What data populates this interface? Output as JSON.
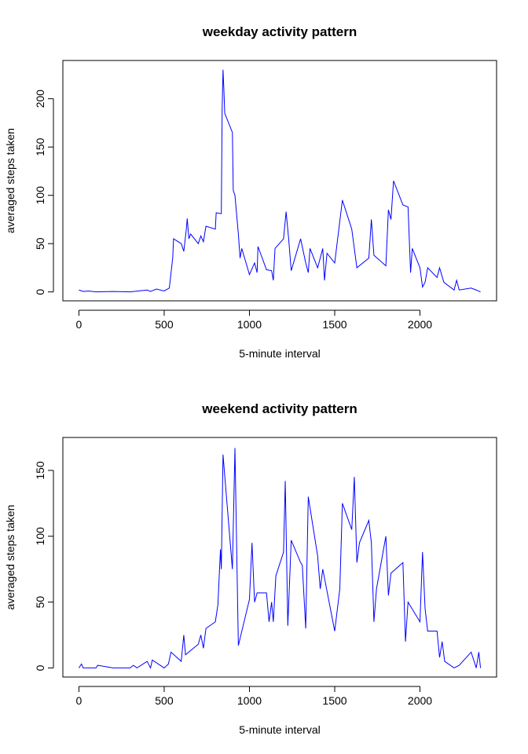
{
  "chart_data": [
    {
      "type": "line",
      "title": "weekday activity pattern",
      "xlabel": "5-minute interval",
      "ylabel": "averaged steps taken",
      "x": [
        0,
        25,
        55,
        100,
        200,
        300,
        400,
        420,
        455,
        500,
        530,
        550,
        555,
        600,
        615,
        630,
        635,
        645,
        655,
        700,
        715,
        730,
        745,
        800,
        805,
        835,
        840,
        845,
        850,
        855,
        900,
        905,
        915,
        925,
        935,
        945,
        955,
        1000,
        1030,
        1045,
        1050,
        1100,
        1130,
        1140,
        1150,
        1200,
        1215,
        1230,
        1245,
        1300,
        1330,
        1345,
        1355,
        1400,
        1430,
        1440,
        1455,
        1500,
        1545,
        1600,
        1630,
        1700,
        1715,
        1730,
        1800,
        1815,
        1830,
        1845,
        1900,
        1930,
        1945,
        1955,
        2000,
        2015,
        2030,
        2045,
        2100,
        2115,
        2140,
        2200,
        2215,
        2230,
        2300,
        2330,
        2355
      ],
      "series": [
        {
          "color": "#0000ff",
          "values": [
            2,
            0.5,
            1,
            0,
            0.5,
            0,
            2,
            0.5,
            3,
            1,
            4,
            35,
            55,
            50,
            42,
            65,
            76,
            55,
            60,
            50,
            58,
            52,
            68,
            65,
            82,
            81,
            190,
            230,
            210,
            185,
            165,
            105,
            100,
            80,
            60,
            35,
            45,
            18,
            30,
            20,
            47,
            23,
            22,
            12,
            45,
            55,
            83,
            55,
            22,
            55,
            30,
            20,
            45,
            25,
            45,
            12,
            40,
            30,
            95,
            65,
            25,
            35,
            75,
            38,
            27,
            85,
            75,
            115,
            90,
            88,
            20,
            45,
            25,
            5,
            10,
            25,
            15,
            25,
            10,
            2,
            12,
            2,
            4,
            2,
            0
          ]
        }
      ],
      "xlim": [
        -94.2,
        2449.2
      ],
      "ylim": [
        -9.2,
        239.6
      ],
      "xticks": [
        0,
        500,
        1000,
        1500,
        2000
      ],
      "yticks": [
        0,
        50,
        100,
        150,
        200
      ]
    },
    {
      "type": "line",
      "title": "weekend activity pattern",
      "xlabel": "5-minute interval",
      "ylabel": "averaged steps taken",
      "x": [
        0,
        15,
        25,
        100,
        110,
        200,
        300,
        320,
        340,
        400,
        420,
        430,
        500,
        525,
        540,
        600,
        615,
        625,
        700,
        715,
        730,
        745,
        800,
        815,
        830,
        835,
        845,
        900,
        915,
        935,
        1000,
        1015,
        1030,
        1045,
        1100,
        1115,
        1130,
        1140,
        1155,
        1200,
        1210,
        1225,
        1245,
        1300,
        1310,
        1330,
        1345,
        1400,
        1415,
        1430,
        1500,
        1530,
        1545,
        1600,
        1615,
        1630,
        1645,
        1700,
        1715,
        1730,
        1745,
        1800,
        1815,
        1830,
        1900,
        1915,
        1930,
        2000,
        2015,
        2030,
        2045,
        2100,
        2115,
        2130,
        2145,
        2200,
        2230,
        2300,
        2330,
        2345,
        2355
      ],
      "series": [
        {
          "color": "#0000ff",
          "values": [
            0,
            3,
            0,
            0,
            2,
            0,
            0,
            2,
            0,
            5,
            0,
            6,
            0,
            3,
            12,
            5,
            25,
            10,
            18,
            25,
            15,
            30,
            35,
            48,
            90,
            75,
            162,
            75,
            167,
            17,
            52,
            95,
            50,
            57,
            57,
            35,
            50,
            35,
            70,
            88,
            142,
            32,
            97,
            80,
            78,
            30,
            130,
            85,
            60,
            75,
            28,
            60,
            125,
            105,
            145,
            80,
            95,
            112,
            95,
            35,
            60,
            100,
            55,
            72,
            80,
            20,
            50,
            35,
            88,
            45,
            28,
            28,
            8,
            20,
            5,
            0,
            2,
            12,
            0,
            12,
            0
          ]
        }
      ],
      "xlim": [
        -94.2,
        2449.2
      ],
      "ylim": [
        -6.9,
        175
      ],
      "xticks": [
        0,
        500,
        1000,
        1500,
        2000
      ],
      "yticks": [
        0,
        50,
        100,
        150
      ]
    }
  ]
}
